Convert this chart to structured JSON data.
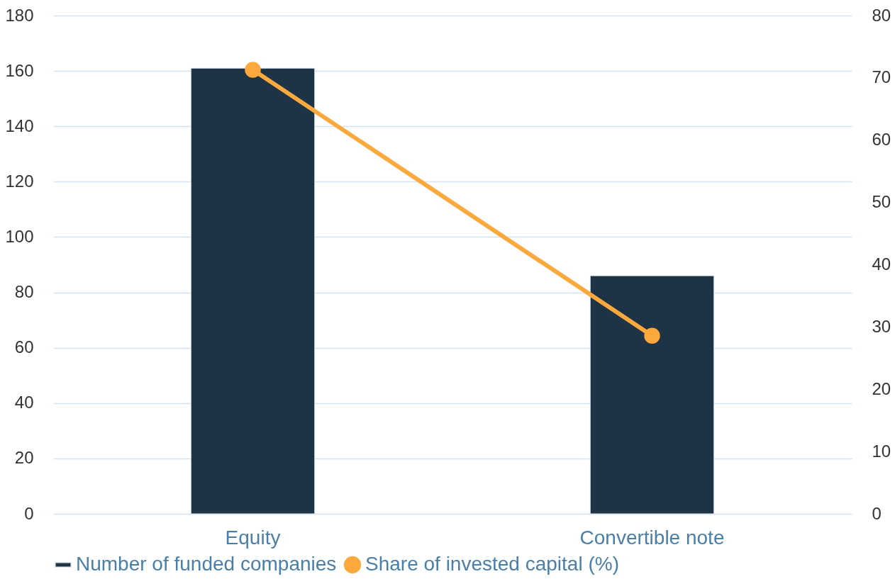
{
  "chart_data": {
    "type": "bar",
    "categories": [
      "Equity",
      "Convertible note"
    ],
    "series": [
      {
        "name": "Number of funded companies",
        "color": "#1e3346",
        "values": [
          161,
          86
        ]
      },
      {
        "name": "Share of invested capital (%)",
        "type": "line",
        "axis": "y2",
        "color": "#fba93d",
        "values": [
          71.3,
          28.6
        ]
      }
    ],
    "ylim": [
      0,
      180
    ],
    "yticks": [
      0,
      20,
      40,
      60,
      80,
      100,
      120,
      140,
      160,
      180
    ],
    "y2lim": [
      0,
      80
    ],
    "y2ticks": [
      0,
      10,
      20,
      30,
      40,
      50,
      60,
      70,
      80
    ],
    "grid": "y",
    "legend": "bottom",
    "marker": "circle"
  }
}
